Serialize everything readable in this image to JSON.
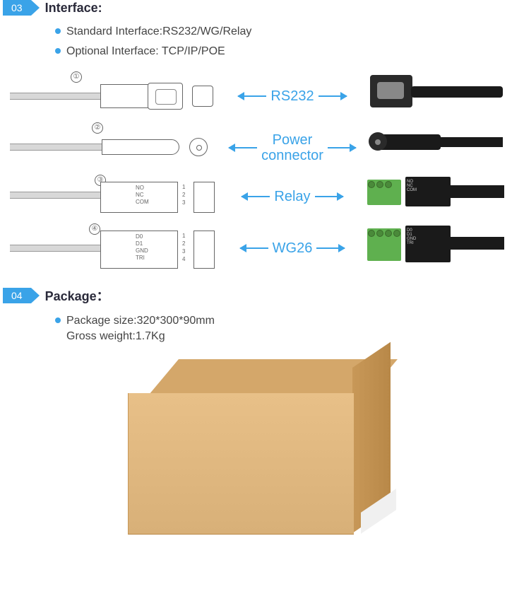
{
  "section03": {
    "number": "03",
    "title": "Interface:",
    "bullets": [
      "Standard Interface:RS232/WG/Relay",
      "Optional Interface: TCP/IP/POE"
    ]
  },
  "diagram": {
    "rows": [
      {
        "num": "①",
        "label": "RS232"
      },
      {
        "num": "②",
        "label": "Power connector"
      },
      {
        "num": "③",
        "label": "Relay",
        "pins": [
          "NO",
          "NC",
          "COM"
        ],
        "pin_nums": [
          "1",
          "2",
          "3"
        ]
      },
      {
        "num": "④",
        "label": "WG26",
        "pins": [
          "D0",
          "D1",
          "GND",
          "TRI"
        ],
        "pin_nums": [
          "1",
          "2",
          "3",
          "4"
        ]
      }
    ],
    "arrow_color": "#3aa3e8",
    "label_color": "#3aa3e8",
    "label_fontsize": 20
  },
  "section04": {
    "number": "04",
    "title": "Package",
    "title_colon": "：",
    "bullets": [
      "Package size:320*300*90mm"
    ],
    "sub_lines": [
      "Gross weight:1.7Kg"
    ]
  },
  "package": {
    "box_color_top": "#d4a76a",
    "box_color_front": "#e0b880",
    "box_color_side": "#c09050"
  },
  "colors": {
    "accent": "#3aa3e8",
    "text": "#333333",
    "title": "#2a2a3a"
  }
}
